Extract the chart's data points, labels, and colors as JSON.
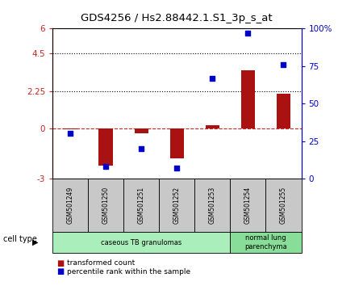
{
  "title": "GDS4256 / Hs2.88442.1.S1_3p_s_at",
  "samples": [
    "GSM501249",
    "GSM501250",
    "GSM501251",
    "GSM501252",
    "GSM501253",
    "GSM501254",
    "GSM501255"
  ],
  "transformed_count": [
    -0.05,
    -2.2,
    -0.3,
    -1.8,
    0.2,
    3.5,
    2.1
  ],
  "percentile_rank": [
    30,
    8,
    20,
    7,
    67,
    97,
    76
  ],
  "left_ylim": [
    -3,
    6
  ],
  "right_ylim": [
    0,
    100
  ],
  "left_yticks": [
    -3,
    0,
    2.25,
    4.5,
    6
  ],
  "right_yticks": [
    0,
    25,
    50,
    75,
    100
  ],
  "left_ytick_labels": [
    "-3",
    "0",
    "2.25",
    "4.5",
    "6"
  ],
  "right_ytick_labels": [
    "0",
    "25",
    "50",
    "75",
    "100%"
  ],
  "hlines": [
    0,
    2.25,
    4.5
  ],
  "hline_styles": [
    "dashed",
    "dotted",
    "dotted"
  ],
  "hline_colors": [
    "#cc2222",
    "#000000",
    "#000000"
  ],
  "bar_color": "#aa1111",
  "scatter_color": "#0000cc",
  "bar_width": 0.4,
  "scatter_size": 25,
  "cell_types": [
    {
      "label": "caseous TB granulomas",
      "samples": [
        0,
        1,
        2,
        3,
        4
      ],
      "color": "#aaeebb"
    },
    {
      "label": "normal lung\nparenchyma",
      "samples": [
        5,
        6
      ],
      "color": "#88dd99"
    }
  ],
  "legend_bar_label": "transformed count",
  "legend_scatter_label": "percentile rank within the sample",
  "cell_type_label": "cell type",
  "background_color": "#ffffff",
  "plot_bg_color": "#ffffff",
  "sample_box_color": "#c8c8c8"
}
